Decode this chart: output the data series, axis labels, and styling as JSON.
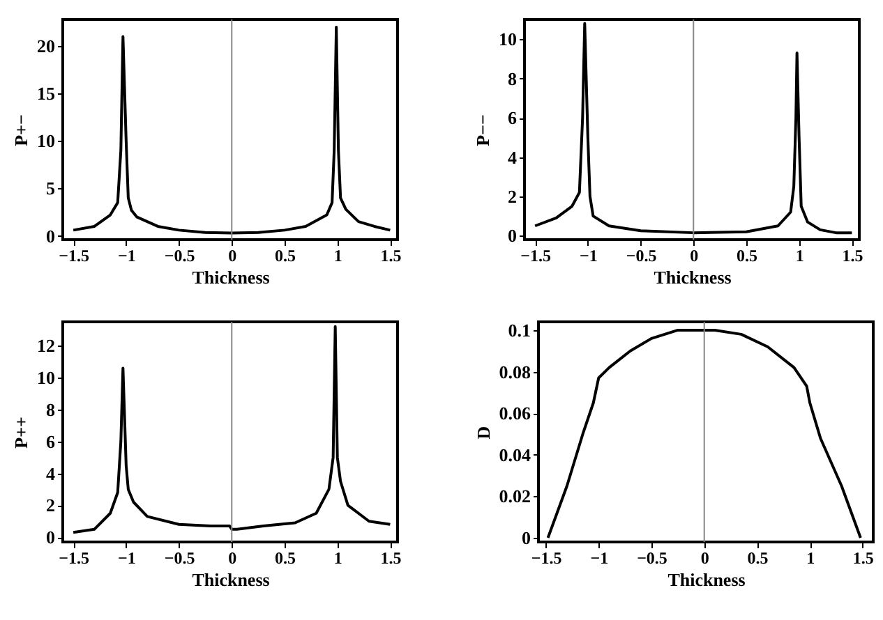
{
  "chart_data": [
    {
      "type": "line",
      "xlabel": "Thickness",
      "ylabel": "P+−",
      "xlim": [
        -1.6,
        1.57
      ],
      "ylim": [
        -0.4,
        22.8
      ],
      "xticks": [
        -1.5,
        -1,
        -0.5,
        0,
        0.5,
        1,
        1.5
      ],
      "yticks": [
        0,
        5,
        10,
        15,
        20
      ],
      "grid": false,
      "ref_lines": [
        {
          "axis": "x",
          "value": 0,
          "color": "#888888"
        }
      ],
      "series": [
        {
          "color": "#000000",
          "x": [
            -1.5,
            -1.3,
            -1.15,
            -1.08,
            -1.05,
            -1.03,
            -1.0,
            -0.98,
            -0.95,
            -0.9,
            -0.7,
            -0.5,
            -0.25,
            0,
            0.25,
            0.5,
            0.7,
            0.9,
            0.95,
            0.97,
            0.99,
            1.01,
            1.03,
            1.08,
            1.2,
            1.35,
            1.5
          ],
          "values": [
            0.6,
            1.0,
            2.2,
            3.5,
            9,
            21,
            10,
            4,
            2.7,
            2,
            1.0,
            0.6,
            0.35,
            0.3,
            0.35,
            0.6,
            1.0,
            2.2,
            3.5,
            9,
            22,
            9,
            4,
            2.8,
            1.5,
            1.0,
            0.6
          ]
        }
      ]
    },
    {
      "type": "line",
      "xlabel": "Thickness",
      "ylabel": "P−−",
      "xlim": [
        -1.6,
        1.57
      ],
      "ylim": [
        -0.2,
        11
      ],
      "xticks": [
        -1.5,
        -1,
        -0.5,
        0,
        0.5,
        1,
        1.5
      ],
      "yticks": [
        0,
        2,
        4,
        6,
        8,
        10
      ],
      "grid": false,
      "ref_lines": [
        {
          "axis": "x",
          "value": 0,
          "color": "#888888"
        }
      ],
      "series": [
        {
          "color": "#000000",
          "x": [
            -1.5,
            -1.3,
            -1.15,
            -1.08,
            -1.05,
            -1.03,
            -1.0,
            -0.98,
            -0.95,
            -0.8,
            -0.5,
            0,
            0.5,
            0.8,
            0.92,
            0.95,
            0.97,
            0.98,
            1.0,
            1.02,
            1.08,
            1.2,
            1.35,
            1.5
          ],
          "values": [
            0.5,
            0.9,
            1.5,
            2.2,
            6,
            10.8,
            5,
            2,
            1,
            0.5,
            0.25,
            0.15,
            0.2,
            0.5,
            1.2,
            2.5,
            6,
            9.3,
            5,
            1.5,
            0.7,
            0.3,
            0.15,
            0.15
          ]
        }
      ]
    },
    {
      "type": "line",
      "xlabel": "Thickness",
      "ylabel": "P++",
      "xlim": [
        -1.6,
        1.57
      ],
      "ylim": [
        -0.3,
        13.5
      ],
      "xticks": [
        -1.5,
        -1,
        -0.5,
        0,
        0.5,
        1,
        1.5
      ],
      "yticks": [
        0,
        2,
        4,
        6,
        8,
        10,
        12
      ],
      "grid": false,
      "ref_lines": [
        {
          "axis": "x",
          "value": 0,
          "color": "#888888"
        }
      ],
      "series": [
        {
          "color": "#000000",
          "x": [
            -1.5,
            -1.3,
            -1.15,
            -1.08,
            -1.05,
            -1.03,
            -1.0,
            -0.98,
            -0.93,
            -0.8,
            -0.5,
            -0.2,
            -0.02,
            0,
            0.05,
            0.3,
            0.6,
            0.8,
            0.92,
            0.96,
            0.98,
            1.0,
            1.03,
            1.1,
            1.3,
            1.5
          ],
          "values": [
            0.3,
            0.5,
            1.5,
            2.8,
            6,
            10.6,
            4.5,
            3,
            2.2,
            1.3,
            0.8,
            0.7,
            0.7,
            0.5,
            0.5,
            0.7,
            0.9,
            1.5,
            3,
            5,
            13.2,
            5,
            3.5,
            2,
            1.0,
            0.8
          ]
        }
      ]
    },
    {
      "type": "line",
      "xlabel": "Thickness",
      "ylabel": "D",
      "xlim": [
        -1.57,
        1.6
      ],
      "ylim": [
        -0.002,
        0.104
      ],
      "xticks": [
        -1.5,
        -1,
        -0.5,
        0,
        0.5,
        1,
        1.5
      ],
      "yticks": [
        0,
        0.02,
        0.04,
        0.06,
        0.08,
        0.1
      ],
      "grid": false,
      "ref_lines": [
        {
          "axis": "x",
          "value": 0,
          "color": "#888888"
        }
      ],
      "series": [
        {
          "color": "#000000",
          "x": [
            -1.48,
            -1.3,
            -1.15,
            -1.05,
            -1.0,
            -0.9,
            -0.7,
            -0.5,
            -0.25,
            0,
            0.1,
            0.35,
            0.6,
            0.85,
            0.97,
            1.0,
            1.1,
            1.3,
            1.48
          ],
          "values": [
            0,
            0.025,
            0.05,
            0.065,
            0.077,
            0.082,
            0.09,
            0.096,
            0.1,
            0.1,
            0.1,
            0.098,
            0.092,
            0.082,
            0.073,
            0.065,
            0.048,
            0.025,
            0
          ]
        }
      ]
    }
  ]
}
